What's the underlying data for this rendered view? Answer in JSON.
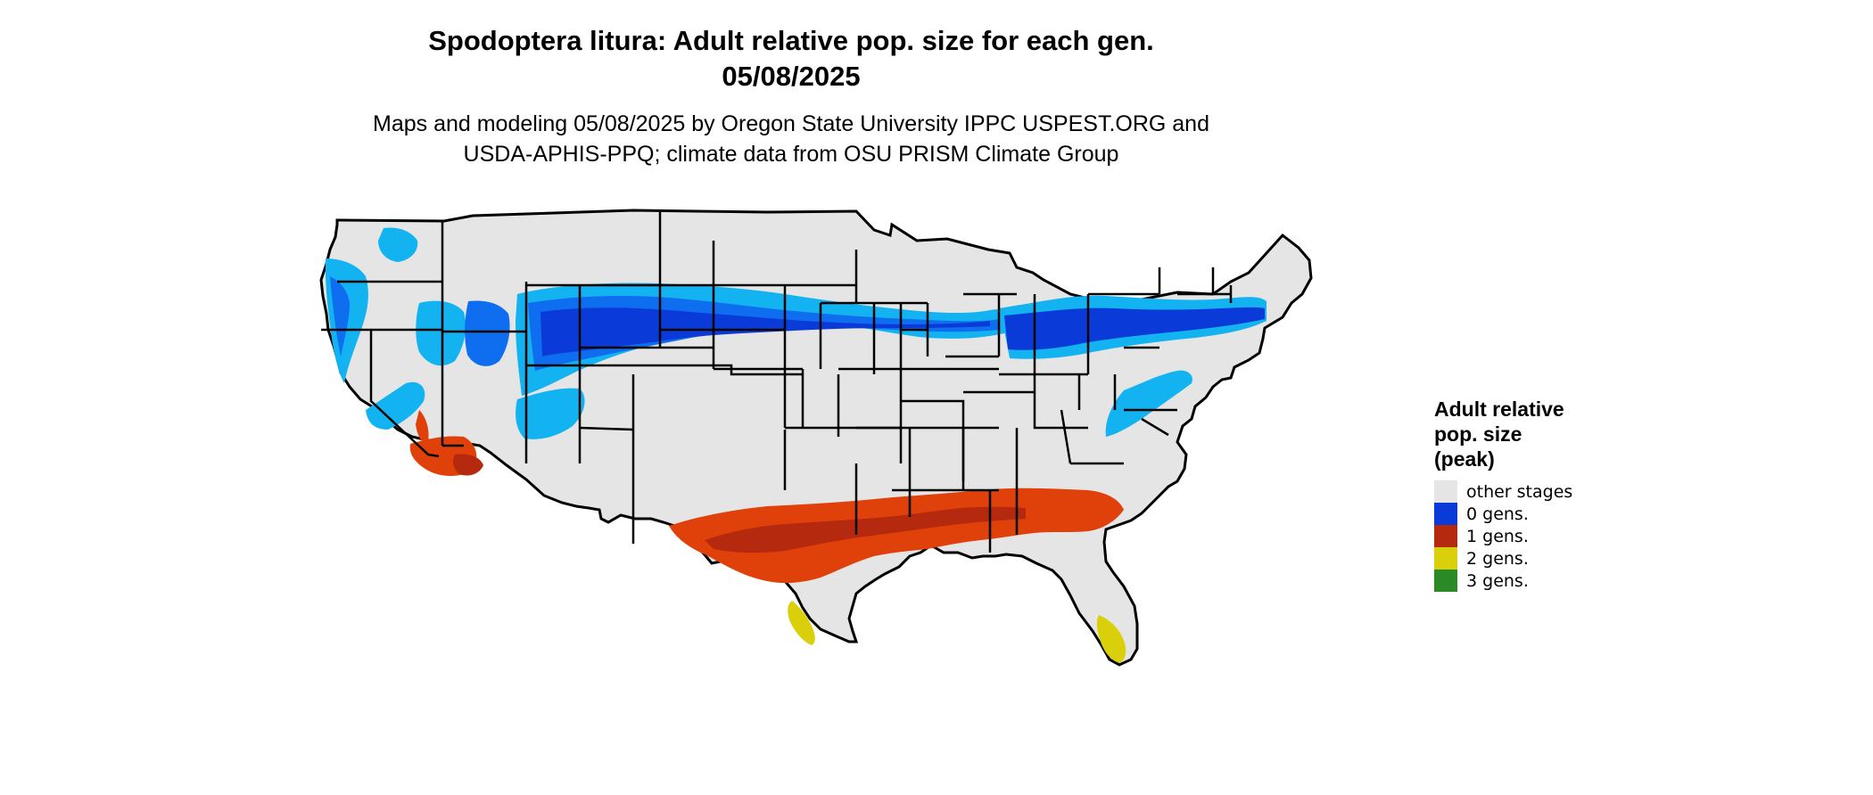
{
  "title": {
    "line1": "Spodoptera litura: Adult relative pop. size for each gen.",
    "line2": "05/08/2025"
  },
  "subtitle": {
    "line1": "Maps and modeling 05/08/2025 by Oregon State University IPPC USPEST.ORG and",
    "line2": "USDA-APHIS-PPQ; climate data from OSU PRISM Climate Group"
  },
  "legend": {
    "title_lines": [
      "Adult relative",
      "pop. size",
      "(peak)"
    ],
    "items": [
      {
        "label": "other stages",
        "color": "#e5e5e5"
      },
      {
        "label": "0 gens.",
        "color": "#0a3ad8"
      },
      {
        "label": "1 gens.",
        "color": "#b5290f"
      },
      {
        "label": "2 gens.",
        "color": "#d9cf0a"
      },
      {
        "label": "3 gens.",
        "color": "#2a8a25"
      }
    ]
  },
  "colors": {
    "land": "#e5e5e5",
    "border": "#000000",
    "blue_dark": "#0a3ad8",
    "blue_mid": "#0f6df0",
    "blue_light": "#12b3f0",
    "red": "#b5290f",
    "orange": "#e0400a",
    "yellow": "#d9cf0a"
  }
}
